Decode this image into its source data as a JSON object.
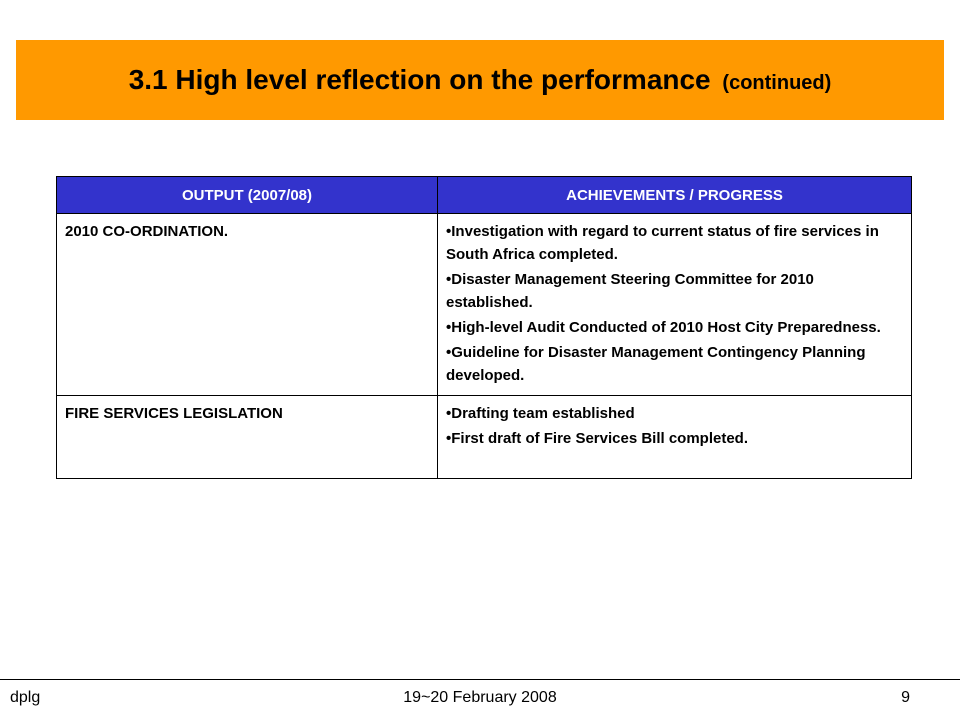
{
  "title": {
    "main": "3.1 High level reflection on the performance",
    "sub": "(continued)"
  },
  "table": {
    "headers": [
      "OUTPUT (2007/08)",
      "ACHIEVEMENTS / PROGRESS"
    ],
    "rows": [
      {
        "output": "2010 CO-ORDINATION.",
        "achievements": [
          "Investigation with regard to current status of fire services in South Africa completed.",
          "Disaster Management Steering Committee for 2010 established.",
          "High-level Audit Conducted of 2010 Host City Preparedness.",
          "Guideline for Disaster Management Contingency Planning developed."
        ]
      },
      {
        "output": "FIRE SERVICES LEGISLATION",
        "achievements": [
          "Drafting team established",
          "First draft of Fire Services Bill completed."
        ]
      }
    ]
  },
  "footer": {
    "left": "dplg",
    "center": "19~20 February 2008",
    "page_number": "9"
  },
  "colors": {
    "title_banner": "#ff9900",
    "table_header": "#3333cc"
  }
}
